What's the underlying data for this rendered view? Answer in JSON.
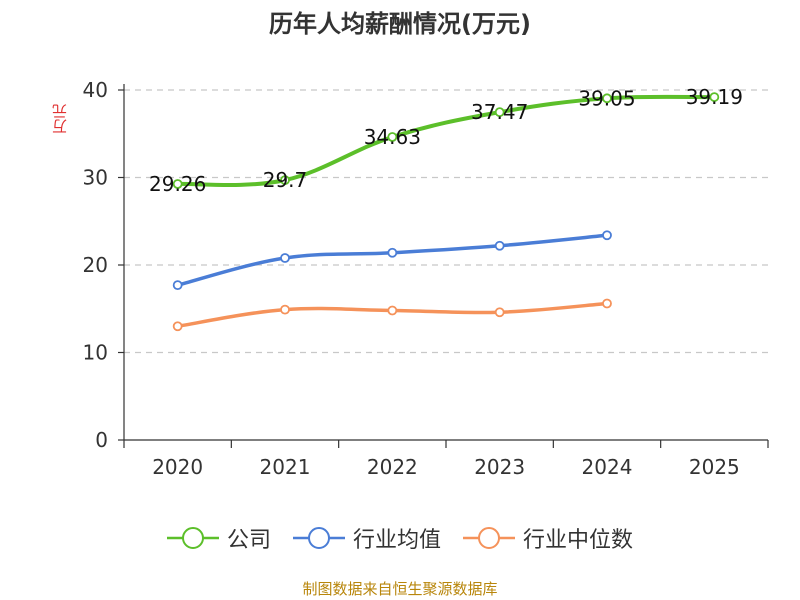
{
  "chart_data": {
    "type": "line",
    "title": "历年人均薪酬情况(万元)",
    "xlabel": "",
    "ylabel": "万元",
    "categories": [
      "2020",
      "2021",
      "2022",
      "2023",
      "2024",
      "2025"
    ],
    "ylim": [
      0,
      40
    ],
    "yticks": [
      0,
      10,
      20,
      30,
      40
    ],
    "grid": true,
    "legend_position": "bottom",
    "series": [
      {
        "name": "公司",
        "color": "#5cbf2a",
        "values": [
          29.26,
          29.7,
          34.63,
          37.47,
          39.05,
          39.19
        ],
        "labels": [
          "29.26",
          "29.7",
          "34.63",
          "37.47",
          "39.05",
          "39.19"
        ]
      },
      {
        "name": "行业均值",
        "color": "#4a7dd6",
        "values": [
          17.7,
          20.8,
          21.4,
          22.2,
          23.4,
          null
        ]
      },
      {
        "name": "行业中位数",
        "color": "#f5925a",
        "values": [
          13.0,
          14.9,
          14.8,
          14.6,
          15.6,
          null
        ]
      }
    ]
  },
  "footer": {
    "source": "制图数据来自恒生聚源数据库"
  }
}
